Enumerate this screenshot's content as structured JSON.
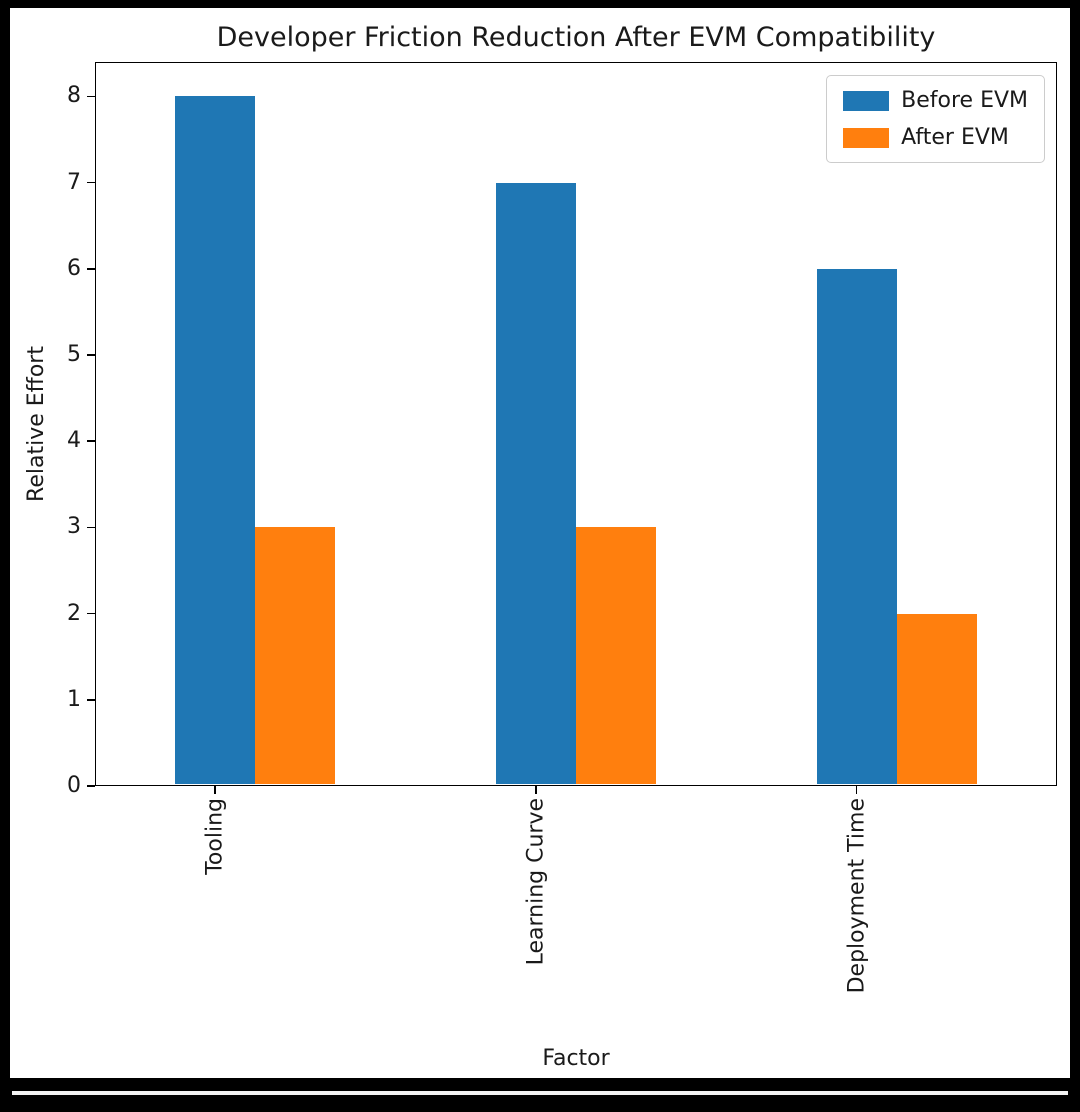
{
  "chart_data": {
    "type": "bar",
    "title": "Developer Friction Reduction After EVM Compatibility",
    "xlabel": "Factor",
    "ylabel": "Relative Effort",
    "categories": [
      "Tooling",
      "Learning Curve",
      "Deployment Time"
    ],
    "series": [
      {
        "name": "Before EVM",
        "color": "#1f77b4",
        "values": [
          8,
          7,
          6
        ]
      },
      {
        "name": "After EVM",
        "color": "#ff7f0e",
        "values": [
          3,
          3,
          2
        ]
      }
    ],
    "ylim": [
      0,
      8.4
    ],
    "yticks": [
      0,
      1,
      2,
      3,
      4,
      5,
      6,
      7,
      8
    ],
    "xtick_rotation": 90,
    "grid": false,
    "legend_position": "upper right",
    "background_color": "#ffffff",
    "text_color": "#1a1a1a"
  }
}
